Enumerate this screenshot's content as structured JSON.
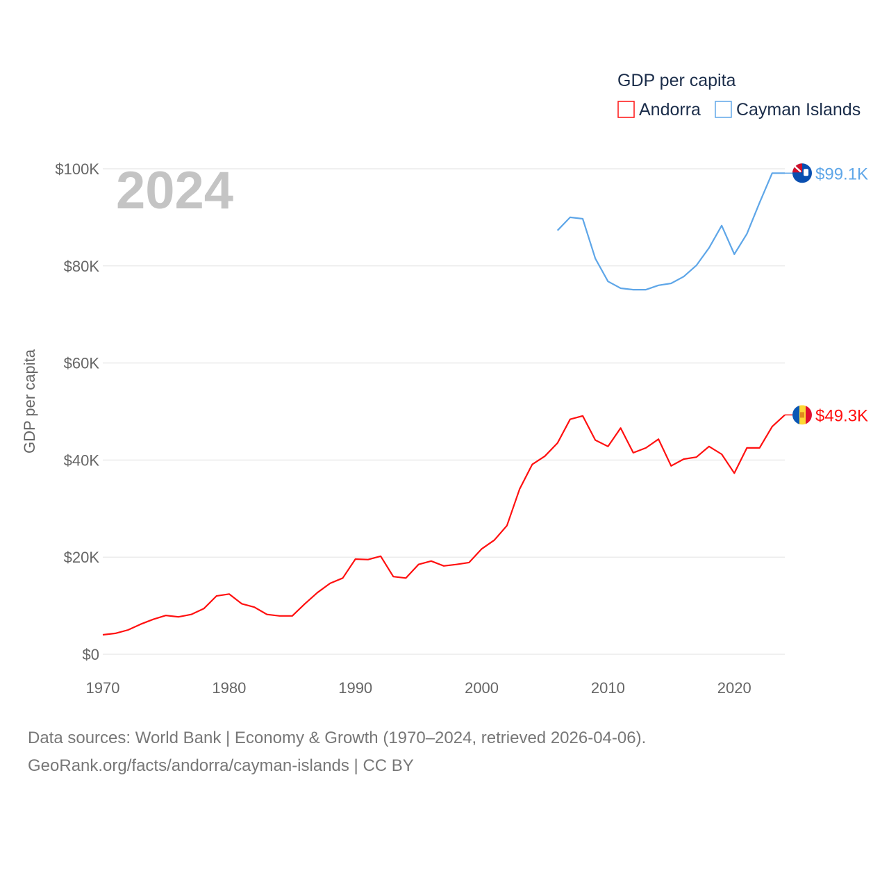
{
  "chart_data": {
    "type": "line",
    "title": "",
    "year_label": "2024",
    "xlabel": "",
    "ylabel": "GDP per capita",
    "xlim": [
      1970,
      2024
    ],
    "ylim": [
      0,
      100
    ],
    "x_ticks": [
      1970,
      1980,
      1990,
      2000,
      2010,
      2020
    ],
    "x_tick_labels": [
      "1970",
      "1980",
      "1990",
      "2000",
      "2010",
      "2020"
    ],
    "y_ticks": [
      0,
      20,
      40,
      60,
      80,
      100
    ],
    "y_tick_labels": [
      "$0",
      "$20K",
      "$40K",
      "$60K",
      "$80K",
      "$100K"
    ],
    "grid": true,
    "legend": {
      "title": "GDP per capita",
      "position": "top-right"
    },
    "units": "thousand USD",
    "series": [
      {
        "name": "Andorra",
        "color": "#ff1010",
        "end_label": "$49.3K",
        "start_year": 1970,
        "values": [
          4.0,
          4.3,
          5.0,
          6.2,
          7.2,
          8.0,
          7.7,
          8.2,
          9.4,
          12.0,
          12.4,
          10.4,
          9.7,
          8.2,
          7.9,
          7.9,
          10.4,
          12.7,
          14.6,
          15.7,
          19.6,
          19.5,
          20.2,
          16.0,
          15.7,
          18.5,
          19.2,
          18.2,
          18.5,
          18.9,
          21.7,
          23.5,
          26.5,
          34.0,
          39.1,
          40.8,
          43.5,
          48.4,
          49.1,
          44.1,
          42.8,
          46.6,
          41.5,
          42.5,
          44.3,
          38.8,
          40.2,
          40.6,
          42.8,
          41.2,
          37.3,
          42.5,
          42.5,
          46.9,
          49.3
        ]
      },
      {
        "name": "Cayman Islands",
        "color": "#5ea6e8",
        "end_label": "$99.1K",
        "start_year": 2006,
        "values": [
          87.3,
          90.0,
          89.7,
          81.5,
          76.8,
          75.4,
          75.1,
          75.1,
          76.0,
          76.4,
          77.8,
          80.1,
          83.7,
          88.3,
          82.4,
          86.6,
          93.0,
          99.1,
          99.1
        ]
      }
    ]
  },
  "footer": {
    "line1": "Data sources: World Bank | Economy & Growth (1970–2024, retrieved 2026-04-06).",
    "line2": "GeoRank.org/facts/andorra/cayman-islands | CC BY"
  }
}
